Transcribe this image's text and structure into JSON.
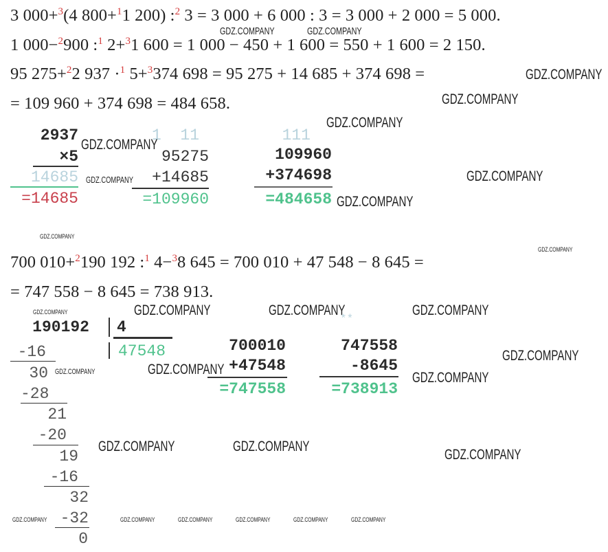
{
  "watermark": "GDZ.COMPANY",
  "colors": {
    "step_order": "#d43b3b",
    "result_green": "#4fc28c",
    "result_red": "#c8404c",
    "carry_faint": "#b9d3dd"
  },
  "equations": [
    [
      {
        "t": "3 000+"
      },
      {
        "s": "3"
      },
      {
        "t": "(4 800+"
      },
      {
        "s": "1"
      },
      {
        "t": "1 200) :"
      },
      {
        "s": "2"
      },
      {
        "t": " 3 = 3 000 + 6 000 : 3 = 3 000 + 2 000 = 5 000."
      }
    ],
    [
      {
        "t": "1 000−"
      },
      {
        "s": "2"
      },
      {
        "t": "900 :"
      },
      {
        "s": "1"
      },
      {
        "t": " 2+"
      },
      {
        "s": "3"
      },
      {
        "t": "1 600 = 1 000 − 450 + 1 600 = 550 + 1 600 = 2 150."
      }
    ],
    [
      {
        "t": "95 275+"
      },
      {
        "s": "2"
      },
      {
        "t": "2 937 ·"
      },
      {
        "s": "1"
      },
      {
        "t": " 5+"
      },
      {
        "s": "3"
      },
      {
        "t": "374 698 = 95 275 + 14 685 + 374 698 ="
      }
    ],
    [
      {
        "t": "= 109 960 + 374 698 = 484 658."
      }
    ],
    [
      {
        "t": "700 010+"
      },
      {
        "s": "2"
      },
      {
        "t": "190 192 :"
      },
      {
        "s": "1"
      },
      {
        "t": " 4−"
      },
      {
        "s": "3"
      },
      {
        "t": "8 645 = 700 010 + 47 548 − 8 645 ="
      }
    ],
    [
      {
        "t": "= 747 558 − 8 645 = 738 913."
      }
    ]
  ],
  "mult": {
    "a": "2937",
    "b": "×5",
    "faint": "14685",
    "result": "=14685"
  },
  "add1": {
    "carry": "1  11",
    "a": "95275",
    "b": "+14685",
    "result": "=109960"
  },
  "add2": {
    "carry": "111",
    "a": "109960",
    "b": "+374698",
    "result": "=484658"
  },
  "division": {
    "dividend": "190192",
    "divisor": "4",
    "quotient": "47548",
    "steps": [
      "-16",
      "30",
      "-28",
      "21",
      "-20",
      "19",
      "-16",
      "32",
      "-32",
      "0"
    ]
  },
  "add3": {
    "a": "700010",
    "b": "+47548",
    "result": "=747558"
  },
  "sub": {
    "carry": "**",
    "a": "747558",
    "b": "-8645",
    "result": "=738913"
  }
}
